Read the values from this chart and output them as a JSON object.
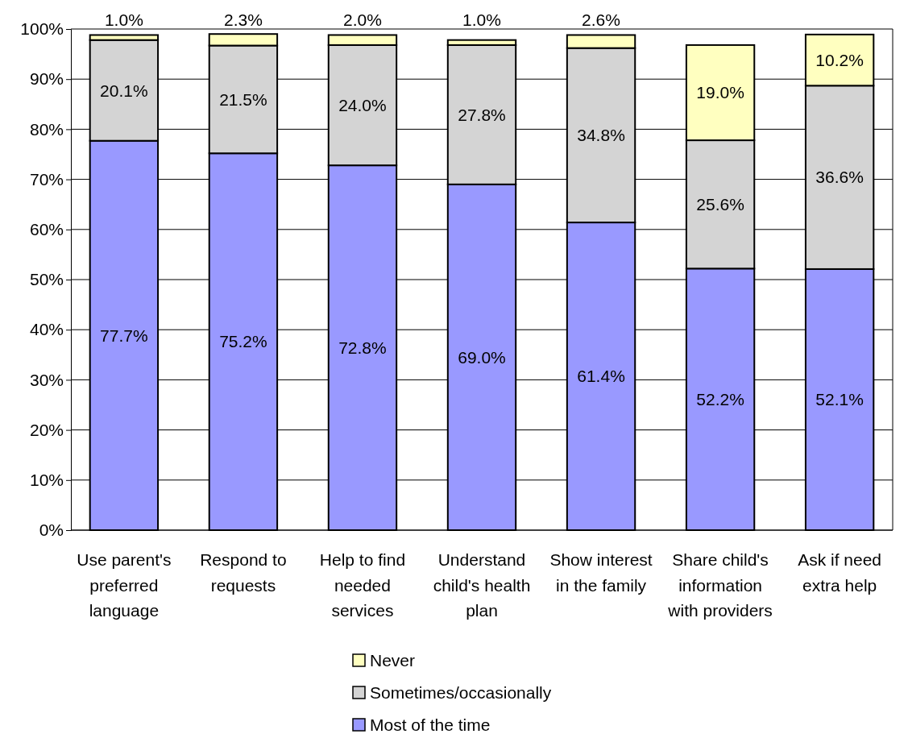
{
  "chart_data": {
    "type": "bar",
    "stacked": true,
    "categories": [
      "Use parent's preferred language",
      "Respond to requests",
      "Help to find needed services",
      "Understand child's health plan",
      "Show interest in the family",
      "Share child's information with providers",
      "Ask if need extra help"
    ],
    "series": [
      {
        "name": "Most of the time",
        "color": "#9999ff",
        "values": [
          77.7,
          75.2,
          72.8,
          69.0,
          61.4,
          52.2,
          52.1
        ],
        "value_labels": [
          "77.7%",
          "75.2%",
          "72.8%",
          "69.0%",
          "61.4%",
          "52.2%",
          "52.1%"
        ]
      },
      {
        "name": "Sometimes/occasionally",
        "color": "#d4d4d4",
        "values": [
          20.1,
          21.5,
          24.0,
          27.8,
          34.8,
          25.6,
          36.6
        ],
        "value_labels": [
          "20.1%",
          "21.5%",
          "24.0%",
          "27.8%",
          "34.8%",
          "25.6%",
          "36.6%"
        ]
      },
      {
        "name": "Never",
        "color": "#ffffc0",
        "values": [
          1.0,
          2.3,
          2.0,
          1.0,
          2.6,
          19.0,
          10.2
        ],
        "value_labels": [
          "1.0%",
          "2.3%",
          "2.0%",
          "1.0%",
          "2.6%",
          "19.0%",
          "10.2%"
        ]
      }
    ],
    "ylim": [
      0,
      100
    ],
    "yticks": [
      {
        "value": 0,
        "label": "0%"
      },
      {
        "value": 10,
        "label": "10%"
      },
      {
        "value": 20,
        "label": "20%"
      },
      {
        "value": 30,
        "label": "30%"
      },
      {
        "value": 40,
        "label": "40%"
      },
      {
        "value": 50,
        "label": "50%"
      },
      {
        "value": 60,
        "label": "60%"
      },
      {
        "value": 70,
        "label": "70%"
      },
      {
        "value": 80,
        "label": "80%"
      },
      {
        "value": 90,
        "label": "90%"
      },
      {
        "value": 100,
        "label": "100%"
      }
    ],
    "grid": "y",
    "legend": "bottom"
  }
}
